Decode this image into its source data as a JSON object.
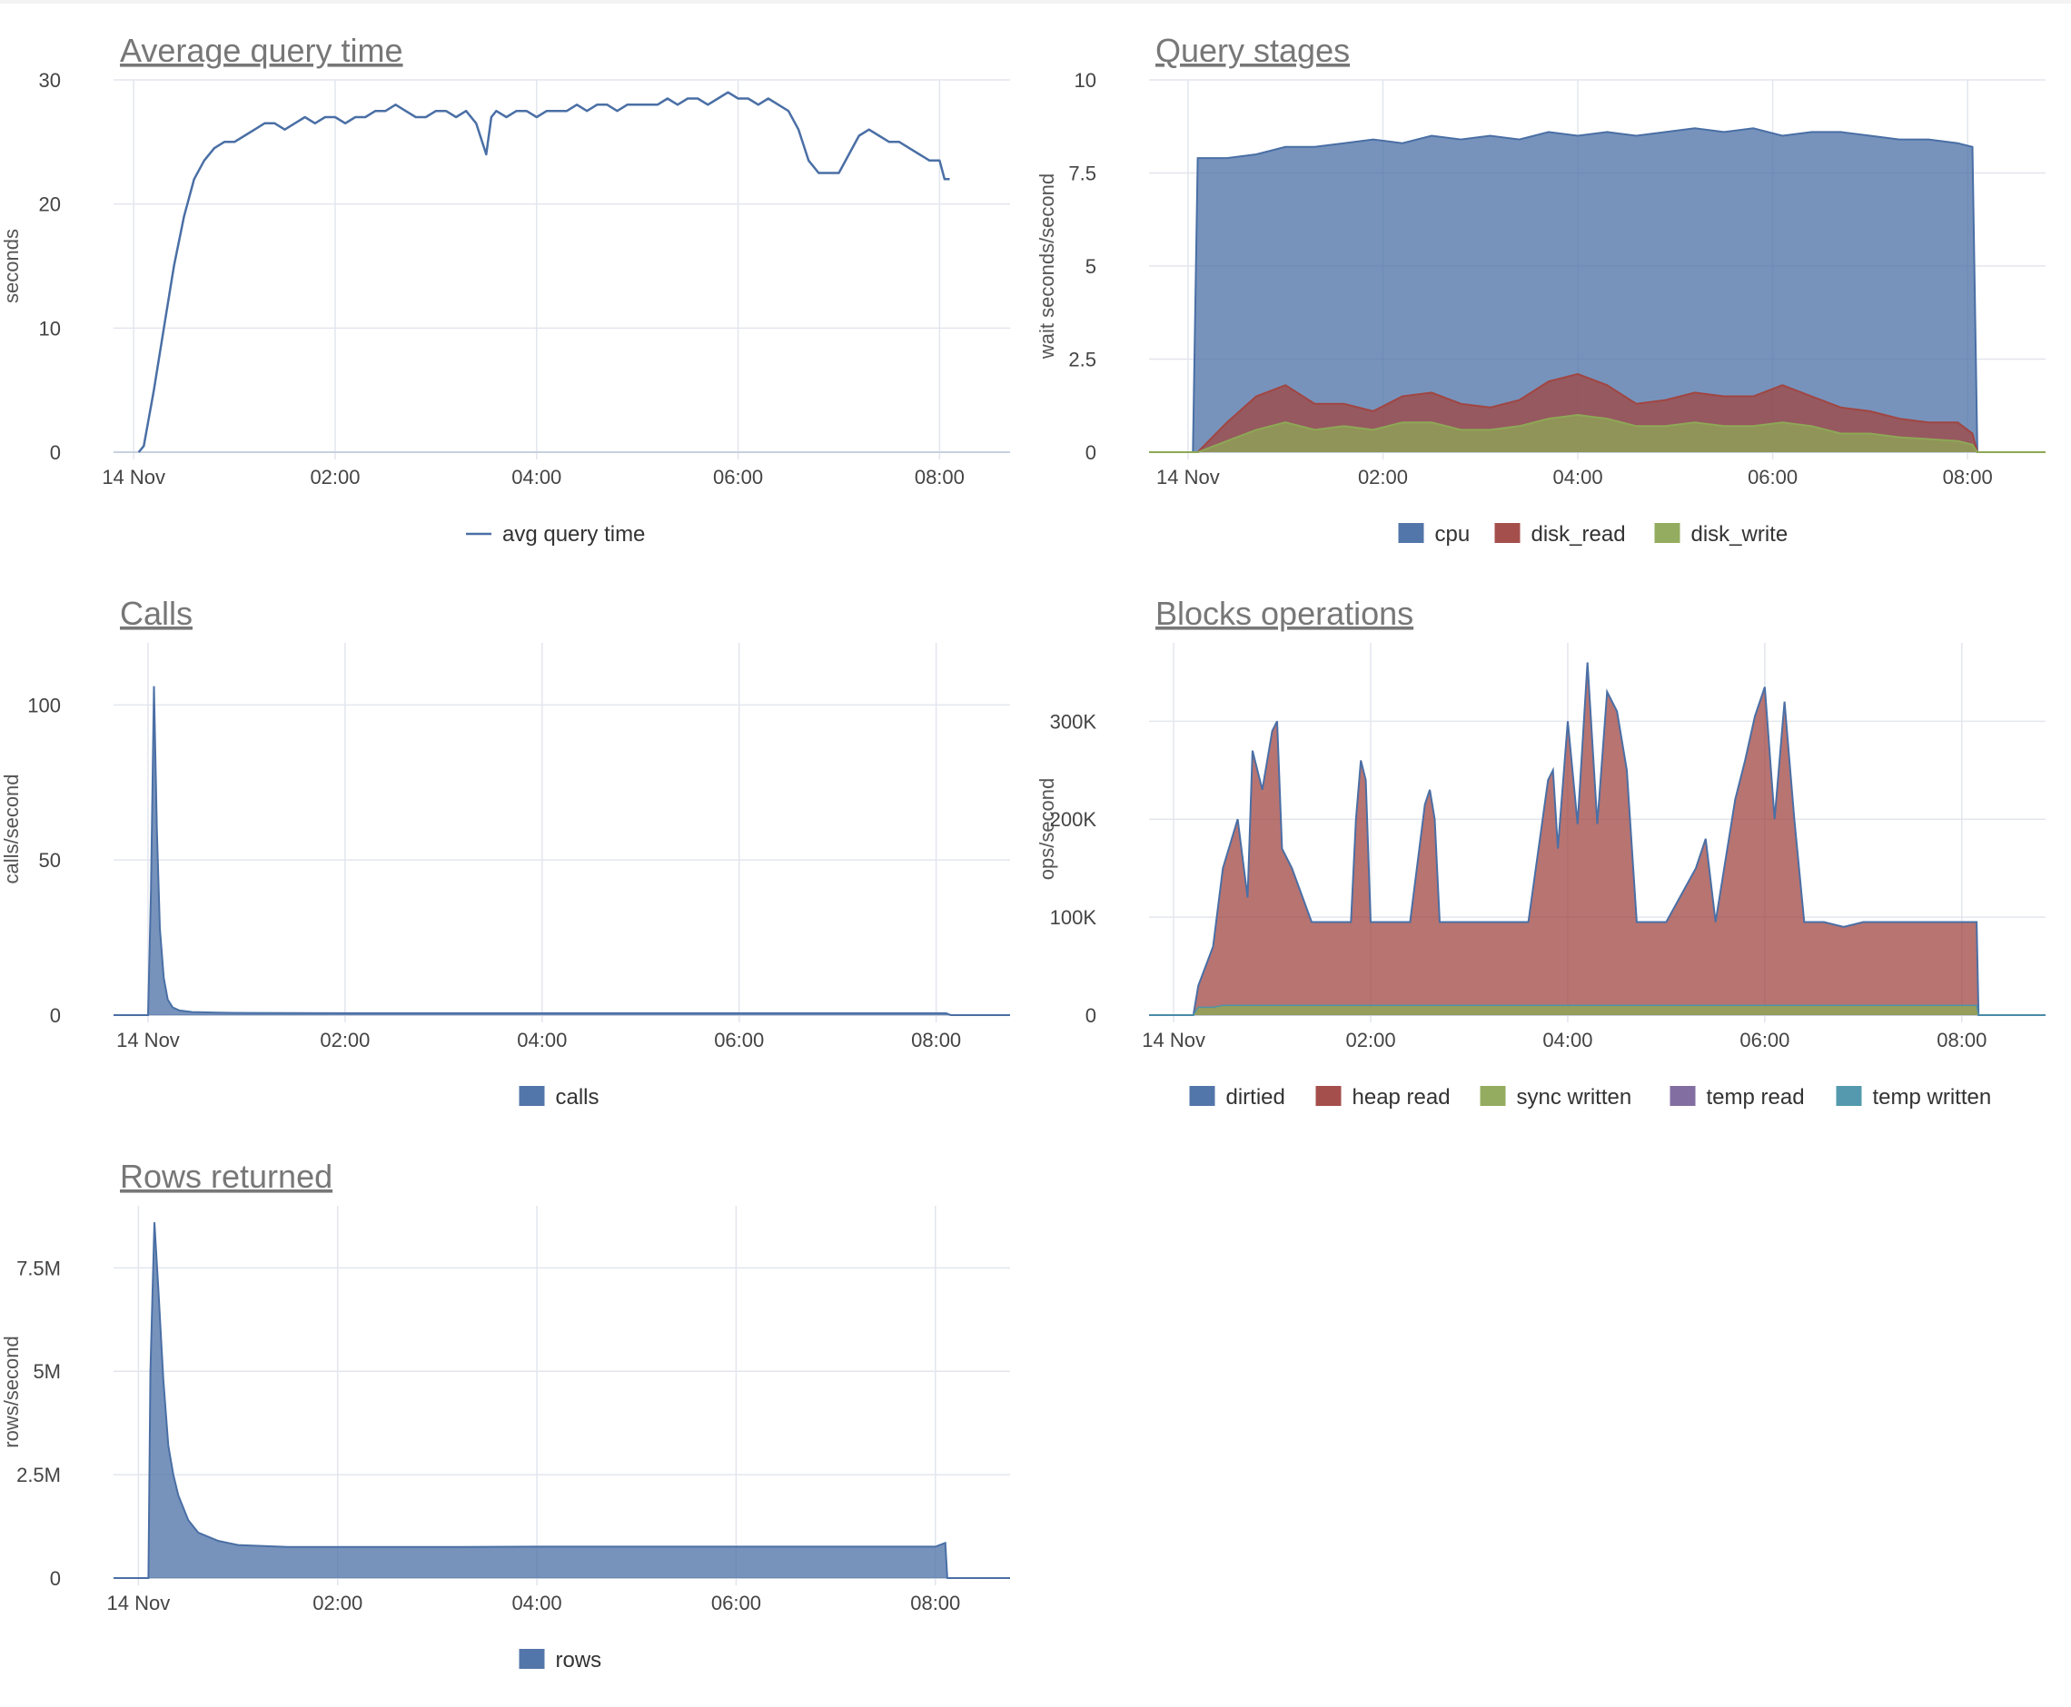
{
  "colors": {
    "blue": "#4a6fa5",
    "red": "#a04642",
    "green": "#8ea856",
    "purple": "#7b669c",
    "teal": "#4b94a9",
    "grid": "#e3e6ee",
    "title": "#777777"
  },
  "chart_data": [
    {
      "id": "avg-query-time",
      "type": "line",
      "title": "Average query time",
      "ylabel": "seconds",
      "xlabel": "",
      "x_unit": "hours",
      "xlim": [
        -0.2,
        8.7
      ],
      "ylim": [
        0,
        30
      ],
      "x_ticks": [
        {
          "v": 0,
          "label": "14 Nov"
        },
        {
          "v": 2,
          "label": "02:00"
        },
        {
          "v": 4,
          "label": "04:00"
        },
        {
          "v": 6,
          "label": "06:00"
        },
        {
          "v": 8,
          "label": "08:00"
        }
      ],
      "y_ticks": [
        {
          "v": 0,
          "label": "0"
        },
        {
          "v": 10,
          "label": "10"
        },
        {
          "v": 20,
          "label": "20"
        },
        {
          "v": 30,
          "label": "30"
        }
      ],
      "grid": true,
      "legend_position": "bottom",
      "series": [
        {
          "name": "avg query time",
          "color": "#4a6fa5",
          "x": [
            0.05,
            0.1,
            0.2,
            0.3,
            0.4,
            0.5,
            0.6,
            0.7,
            0.8,
            0.9,
            1.0,
            1.1,
            1.2,
            1.3,
            1.4,
            1.5,
            1.6,
            1.7,
            1.8,
            1.9,
            2.0,
            2.1,
            2.2,
            2.3,
            2.4,
            2.5,
            2.6,
            2.7,
            2.8,
            2.9,
            3.0,
            3.1,
            3.2,
            3.3,
            3.4,
            3.5,
            3.55,
            3.6,
            3.7,
            3.8,
            3.9,
            4.0,
            4.1,
            4.2,
            4.3,
            4.4,
            4.5,
            4.6,
            4.7,
            4.8,
            4.9,
            5.0,
            5.1,
            5.2,
            5.3,
            5.4,
            5.5,
            5.6,
            5.7,
            5.8,
            5.9,
            6.0,
            6.1,
            6.2,
            6.3,
            6.4,
            6.5,
            6.6,
            6.7,
            6.8,
            6.9,
            7.0,
            7.1,
            7.2,
            7.3,
            7.4,
            7.5,
            7.6,
            7.7,
            7.8,
            7.9,
            8.0,
            8.05,
            8.1
          ],
          "values": [
            0,
            0.5,
            5,
            10,
            15,
            19,
            22,
            23.5,
            24.5,
            25,
            25,
            25.5,
            26,
            26.5,
            26.5,
            26,
            26.5,
            27,
            26.5,
            27,
            27,
            26.5,
            27,
            27,
            27.5,
            27.5,
            28,
            27.5,
            27,
            27,
            27.5,
            27.5,
            27,
            27.5,
            26.5,
            24,
            27,
            27.5,
            27,
            27.5,
            27.5,
            27,
            27.5,
            27.5,
            27.5,
            28,
            27.5,
            28,
            28,
            27.5,
            28,
            28,
            28,
            28,
            28.5,
            28,
            28.5,
            28.5,
            28,
            28.5,
            29,
            28.5,
            28.5,
            28,
            28.5,
            28,
            27.5,
            26,
            23.5,
            22.5,
            22.5,
            22.5,
            24,
            25.5,
            26,
            25.5,
            25,
            25,
            24.5,
            24,
            23.5,
            23.5,
            22,
            22
          ]
        }
      ]
    },
    {
      "id": "query-stages",
      "type": "area",
      "title": "Query stages",
      "ylabel": "wait seconds/second",
      "xlabel": "",
      "x_unit": "hours",
      "xlim": [
        -0.4,
        8.8
      ],
      "ylim": [
        0,
        10
      ],
      "stacked": true,
      "x_ticks": [
        {
          "v": 0,
          "label": "14 Nov"
        },
        {
          "v": 2,
          "label": "02:00"
        },
        {
          "v": 4,
          "label": "04:00"
        },
        {
          "v": 6,
          "label": "06:00"
        },
        {
          "v": 8,
          "label": "08:00"
        }
      ],
      "y_ticks": [
        {
          "v": 0,
          "label": "0"
        },
        {
          "v": 2.5,
          "label": "2.5"
        },
        {
          "v": 5,
          "label": "5"
        },
        {
          "v": 7.5,
          "label": "7.5"
        },
        {
          "v": 10,
          "label": "10"
        }
      ],
      "grid": true,
      "legend_position": "bottom",
      "series": [
        {
          "name": "cpu",
          "color": "#4a6fa5"
        },
        {
          "name": "disk_read",
          "color": "#a04642"
        },
        {
          "name": "disk_write",
          "color": "#8ea856"
        }
      ],
      "x": [
        -0.4,
        0.05,
        0.1,
        0.4,
        0.7,
        1.0,
        1.3,
        1.6,
        1.9,
        2.2,
        2.5,
        2.8,
        3.1,
        3.4,
        3.7,
        4.0,
        4.3,
        4.6,
        4.9,
        5.2,
        5.5,
        5.8,
        6.1,
        6.4,
        6.7,
        7.0,
        7.3,
        7.6,
        7.9,
        8.05,
        8.1,
        8.8
      ],
      "totals": [
        0,
        0,
        7.9,
        7.9,
        8,
        8.2,
        8.2,
        8.3,
        8.4,
        8.3,
        8.5,
        8.4,
        8.5,
        8.4,
        8.6,
        8.5,
        8.6,
        8.5,
        8.6,
        8.7,
        8.6,
        8.7,
        8.5,
        8.6,
        8.6,
        8.5,
        8.4,
        8.4,
        8.3,
        8.2,
        0,
        0
      ],
      "disk_read_stack": [
        0,
        0,
        0,
        0.8,
        1.5,
        1.8,
        1.3,
        1.3,
        1.1,
        1.5,
        1.6,
        1.3,
        1.2,
        1.4,
        1.9,
        2.1,
        1.8,
        1.3,
        1.4,
        1.6,
        1.5,
        1.5,
        1.8,
        1.5,
        1.2,
        1.1,
        0.9,
        0.8,
        0.8,
        0.5,
        0,
        0
      ],
      "disk_write_stack": [
        0,
        0,
        0,
        0.3,
        0.6,
        0.8,
        0.6,
        0.7,
        0.6,
        0.8,
        0.8,
        0.6,
        0.6,
        0.7,
        0.9,
        1.0,
        0.9,
        0.7,
        0.7,
        0.8,
        0.7,
        0.7,
        0.8,
        0.7,
        0.5,
        0.5,
        0.4,
        0.35,
        0.3,
        0.2,
        0,
        0
      ]
    },
    {
      "id": "calls",
      "type": "area",
      "title": "Calls",
      "ylabel": "calls/second",
      "xlabel": "",
      "x_unit": "hours",
      "xlim": [
        -0.35,
        8.75
      ],
      "ylim": [
        0,
        120
      ],
      "x_ticks": [
        {
          "v": 0,
          "label": "14 Nov"
        },
        {
          "v": 2,
          "label": "02:00"
        },
        {
          "v": 4,
          "label": "04:00"
        },
        {
          "v": 6,
          "label": "06:00"
        },
        {
          "v": 8,
          "label": "08:00"
        }
      ],
      "y_ticks": [
        {
          "v": 0,
          "label": "0"
        },
        {
          "v": 50,
          "label": "50"
        },
        {
          "v": 100,
          "label": "100"
        }
      ],
      "grid": true,
      "legend_position": "bottom",
      "series": [
        {
          "name": "calls",
          "color": "#4a6fa5",
          "x": [
            -0.35,
            0.0,
            0.03,
            0.06,
            0.09,
            0.12,
            0.16,
            0.2,
            0.25,
            0.32,
            0.45,
            0.7,
            1.0,
            2.0,
            3.0,
            4.0,
            5.0,
            6.0,
            7.0,
            8.0,
            8.1,
            8.15,
            8.75
          ],
          "values": [
            0,
            0,
            40,
            106,
            60,
            28,
            12,
            5,
            2.5,
            1.5,
            1,
            0.8,
            0.7,
            0.6,
            0.6,
            0.6,
            0.6,
            0.6,
            0.6,
            0.6,
            0.6,
            0,
            0
          ]
        }
      ]
    },
    {
      "id": "blocks-operations",
      "type": "area",
      "title": "Blocks operations",
      "ylabel": "ops/second",
      "xlabel": "",
      "x_unit": "hours",
      "xlim": [
        -0.25,
        8.85
      ],
      "ylim": [
        0,
        380000
      ],
      "stacked": true,
      "x_ticks": [
        {
          "v": 0,
          "label": "14 Nov"
        },
        {
          "v": 2,
          "label": "02:00"
        },
        {
          "v": 4,
          "label": "04:00"
        },
        {
          "v": 6,
          "label": "06:00"
        },
        {
          "v": 8,
          "label": "08:00"
        }
      ],
      "y_ticks": [
        {
          "v": 0,
          "label": "0"
        },
        {
          "v": 100000,
          "label": "100K"
        },
        {
          "v": 200000,
          "label": "200K"
        },
        {
          "v": 300000,
          "label": "300K"
        }
      ],
      "grid": true,
      "legend_position": "bottom",
      "series": [
        {
          "name": "dirtied",
          "color": "#4a6fa5"
        },
        {
          "name": "heap read",
          "color": "#a04642"
        },
        {
          "name": "sync written",
          "color": "#8ea856"
        },
        {
          "name": "temp read",
          "color": "#7b669c"
        },
        {
          "name": "temp written",
          "color": "#4b94a9"
        }
      ],
      "x": [
        -0.25,
        0.2,
        0.25,
        0.4,
        0.5,
        0.65,
        0.75,
        0.8,
        0.9,
        1.0,
        1.05,
        1.1,
        1.2,
        1.4,
        1.6,
        1.8,
        1.85,
        1.9,
        1.95,
        2.0,
        2.2,
        2.4,
        2.55,
        2.6,
        2.65,
        2.7,
        3.0,
        3.3,
        3.6,
        3.8,
        3.85,
        3.9,
        4.0,
        4.1,
        4.2,
        4.3,
        4.4,
        4.5,
        4.6,
        4.7,
        5.0,
        5.3,
        5.4,
        5.5,
        5.7,
        5.8,
        5.9,
        6.0,
        6.1,
        6.2,
        6.3,
        6.4,
        6.6,
        6.8,
        7.0,
        7.5,
        8.0,
        8.15,
        8.17,
        8.85
      ],
      "totals": [
        0,
        0,
        30000,
        70000,
        150000,
        200000,
        120000,
        270000,
        230000,
        290000,
        300000,
        170000,
        150000,
        95000,
        95000,
        95000,
        200000,
        260000,
        240000,
        95000,
        95000,
        95000,
        215000,
        230000,
        200000,
        95000,
        95000,
        95000,
        95000,
        240000,
        250000,
        170000,
        300000,
        195000,
        360000,
        195000,
        330000,
        310000,
        250000,
        95000,
        95000,
        150000,
        180000,
        95000,
        220000,
        260000,
        305000,
        335000,
        200000,
        320000,
        200000,
        95000,
        95000,
        90000,
        95000,
        95000,
        95000,
        95000,
        0,
        0
      ],
      "lower_stack": [
        0,
        0,
        8000,
        8000,
        10000,
        10000,
        10000,
        10000,
        10000,
        10000,
        10000,
        10000,
        10000,
        10000,
        10000,
        10000,
        10000,
        10000,
        10000,
        10000,
        10000,
        10000,
        10000,
        10000,
        10000,
        10000,
        10000,
        10000,
        10000,
        10000,
        10000,
        10000,
        10000,
        10000,
        10000,
        10000,
        10000,
        10000,
        10000,
        10000,
        10000,
        10000,
        10000,
        10000,
        10000,
        10000,
        10000,
        10000,
        10000,
        10000,
        10000,
        10000,
        10000,
        10000,
        10000,
        10000,
        10000,
        10000,
        0,
        0
      ]
    },
    {
      "id": "rows-returned",
      "type": "area",
      "title": "Rows returned",
      "ylabel": "rows/second",
      "xlabel": "",
      "x_unit": "hours",
      "xlim": [
        -0.25,
        8.75
      ],
      "ylim": [
        0,
        9000000
      ],
      "x_ticks": [
        {
          "v": 0,
          "label": "14 Nov"
        },
        {
          "v": 2,
          "label": "02:00"
        },
        {
          "v": 4,
          "label": "04:00"
        },
        {
          "v": 6,
          "label": "06:00"
        },
        {
          "v": 8,
          "label": "08:00"
        }
      ],
      "y_ticks": [
        {
          "v": 0,
          "label": "0"
        },
        {
          "v": 2500000,
          "label": "2.5M"
        },
        {
          "v": 5000000,
          "label": "5M"
        },
        {
          "v": 7500000,
          "label": "7.5M"
        }
      ],
      "grid": true,
      "legend_position": "bottom",
      "series": [
        {
          "name": "rows",
          "color": "#4a6fa5",
          "x": [
            -0.25,
            0.1,
            0.12,
            0.16,
            0.2,
            0.25,
            0.3,
            0.35,
            0.4,
            0.5,
            0.6,
            0.8,
            1.0,
            1.5,
            2.0,
            3.0,
            4.0,
            5.0,
            6.0,
            7.0,
            8.0,
            8.1,
            8.12,
            8.75
          ],
          "values": [
            0,
            0,
            5000000,
            8600000,
            7000000,
            4800000,
            3200000,
            2500000,
            2000000,
            1400000,
            1100000,
            900000,
            800000,
            750000,
            750000,
            750000,
            760000,
            760000,
            760000,
            760000,
            760000,
            850000,
            0,
            0
          ]
        }
      ]
    }
  ]
}
